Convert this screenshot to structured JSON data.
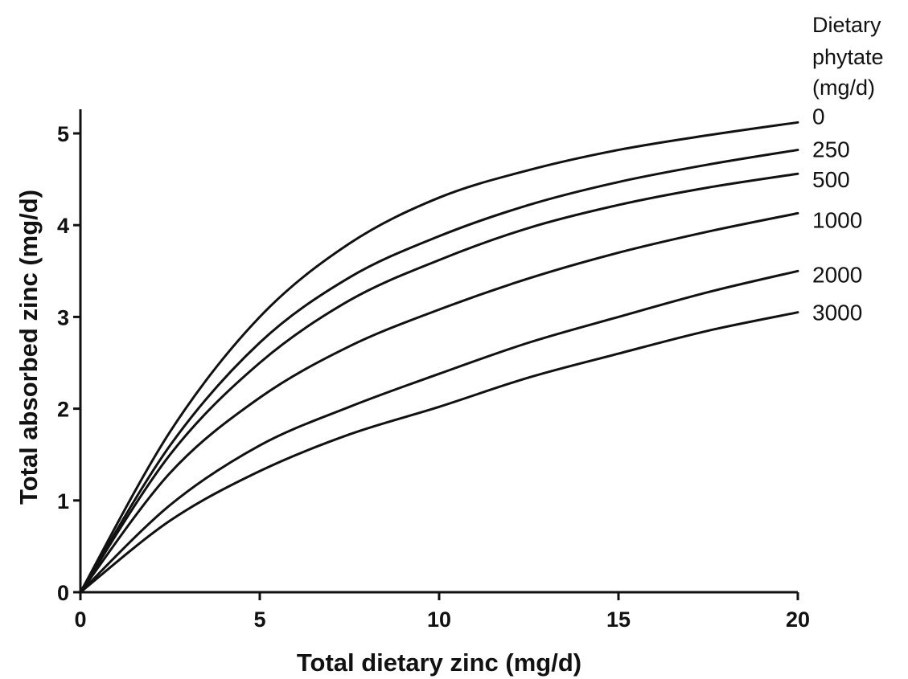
{
  "chart_data": {
    "type": "line",
    "title": "",
    "xlabel": "Total dietary zinc (mg/d)",
    "ylabel": "Total absorbed zinc (mg/d)",
    "xlim": [
      0,
      20
    ],
    "ylim": [
      0,
      5
    ],
    "x_ticks": [
      0,
      5,
      10,
      15,
      20
    ],
    "y_ticks": [
      0,
      1,
      2,
      3,
      4,
      5
    ],
    "grid": false,
    "legend_title": [
      "Dietary",
      "phytate",
      "(mg/d)"
    ],
    "legend_placement": "right, labels at curve ends",
    "line_color": "#111111",
    "x": [
      0,
      2.5,
      5,
      7.5,
      10,
      12.5,
      15,
      17.5,
      20
    ],
    "series": [
      {
        "name": "0",
        "values": [
          0,
          1.75,
          3.0,
          3.8,
          4.3,
          4.6,
          4.82,
          4.98,
          5.12
        ]
      },
      {
        "name": "250",
        "values": [
          0,
          1.6,
          2.72,
          3.43,
          3.88,
          4.22,
          4.47,
          4.66,
          4.82
        ]
      },
      {
        "name": "500",
        "values": [
          0,
          1.5,
          2.5,
          3.18,
          3.62,
          3.97,
          4.22,
          4.41,
          4.56
        ]
      },
      {
        "name": "1000",
        "values": [
          0,
          1.3,
          2.12,
          2.68,
          3.08,
          3.42,
          3.7,
          3.93,
          4.13
        ]
      },
      {
        "name": "2000",
        "values": [
          0,
          0.95,
          1.6,
          2.02,
          2.38,
          2.72,
          3.0,
          3.27,
          3.5
        ]
      },
      {
        "name": "3000",
        "values": [
          0,
          0.78,
          1.32,
          1.72,
          2.02,
          2.34,
          2.6,
          2.85,
          3.05
        ]
      }
    ]
  }
}
